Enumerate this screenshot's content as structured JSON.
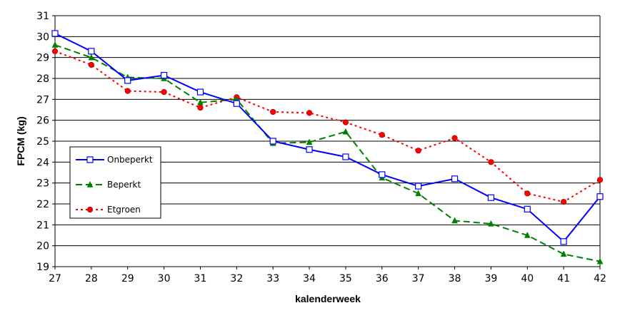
{
  "chart_data": {
    "type": "line",
    "title": "",
    "xlabel": "kalenderweek",
    "ylabel": "FPCM (kg)",
    "ylim": [
      19,
      31
    ],
    "x": [
      27,
      28,
      29,
      30,
      31,
      32,
      33,
      34,
      35,
      36,
      37,
      38,
      39,
      40,
      41,
      42
    ],
    "y_ticks": [
      19,
      20,
      21,
      22,
      23,
      24,
      25,
      26,
      27,
      28,
      29,
      30,
      31
    ],
    "grid": true,
    "legend_position": "left",
    "series": [
      {
        "name": "Onbeperkt",
        "color": "#0000FF",
        "marker": "square",
        "line_style": "solid",
        "values": [
          30.15,
          29.3,
          27.9,
          28.15,
          27.35,
          26.8,
          25.0,
          24.6,
          24.25,
          23.4,
          22.85,
          23.2,
          22.3,
          21.75,
          20.2,
          22.35
        ]
      },
      {
        "name": "Beperkt",
        "color": "#008000",
        "marker": "triangle",
        "line_style": "dashed",
        "values": [
          29.6,
          29.0,
          28.05,
          28.0,
          26.85,
          27.0,
          24.9,
          24.95,
          25.45,
          23.25,
          22.5,
          21.2,
          21.05,
          20.5,
          19.6,
          19.25
        ]
      },
      {
        "name": "Etgroen",
        "color": "#FF0000",
        "marker": "circle",
        "line_style": "dotted",
        "values": [
          29.3,
          28.65,
          27.4,
          27.35,
          26.6,
          27.1,
          26.4,
          26.35,
          25.9,
          25.3,
          24.55,
          25.15,
          24.0,
          22.5,
          22.1,
          23.15
        ]
      }
    ]
  }
}
